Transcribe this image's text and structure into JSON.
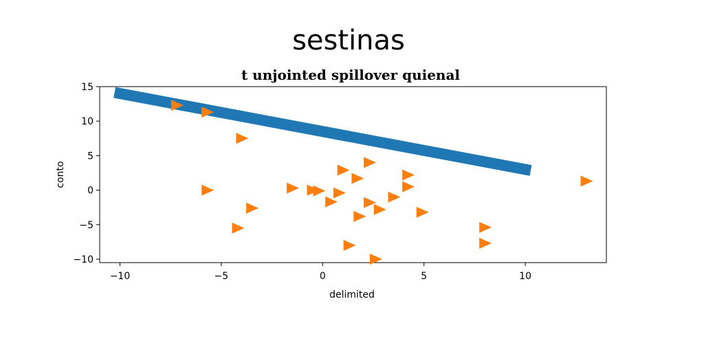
{
  "chart_data": {
    "type": "scatter",
    "suptitle": "sestinas",
    "title": "t unjointed spillover quienal",
    "xlabel": "delimited",
    "ylabel": "conto",
    "xlim": [
      -11,
      14
    ],
    "ylim": [
      -10.5,
      15
    ],
    "xticks": [
      -10,
      -5,
      0,
      5,
      10
    ],
    "yticks": [
      -10,
      -5,
      0,
      5,
      10,
      15
    ],
    "grid": false,
    "colors": {
      "line": "#1f77b4",
      "markers": "#ff7f0e"
    },
    "series": [
      {
        "kind": "thick-line",
        "x": [
          -10,
          10
        ],
        "y": [
          14,
          3
        ]
      },
      {
        "kind": "triangle-right-markers",
        "x": [
          -7.2,
          -5.7,
          -4.0,
          -5.7,
          -3.5,
          -4.2,
          -1.5,
          -0.5,
          -0.2,
          0.8,
          0.4,
          1.0,
          1.7,
          2.3,
          1.8,
          2.3,
          2.8,
          3.5,
          4.2,
          4.2,
          4.9,
          1.3,
          2.6,
          8.0,
          8.0,
          13.0
        ],
        "y": [
          12.3,
          11.3,
          7.5,
          0.0,
          -2.6,
          -5.5,
          0.3,
          0.0,
          -0.1,
          -0.4,
          -1.7,
          2.9,
          1.7,
          4.0,
          -3.8,
          -1.8,
          -2.8,
          -1.0,
          2.2,
          0.5,
          -3.2,
          -8.0,
          -10.0,
          -5.4,
          -7.7,
          1.3
        ]
      }
    ]
  }
}
